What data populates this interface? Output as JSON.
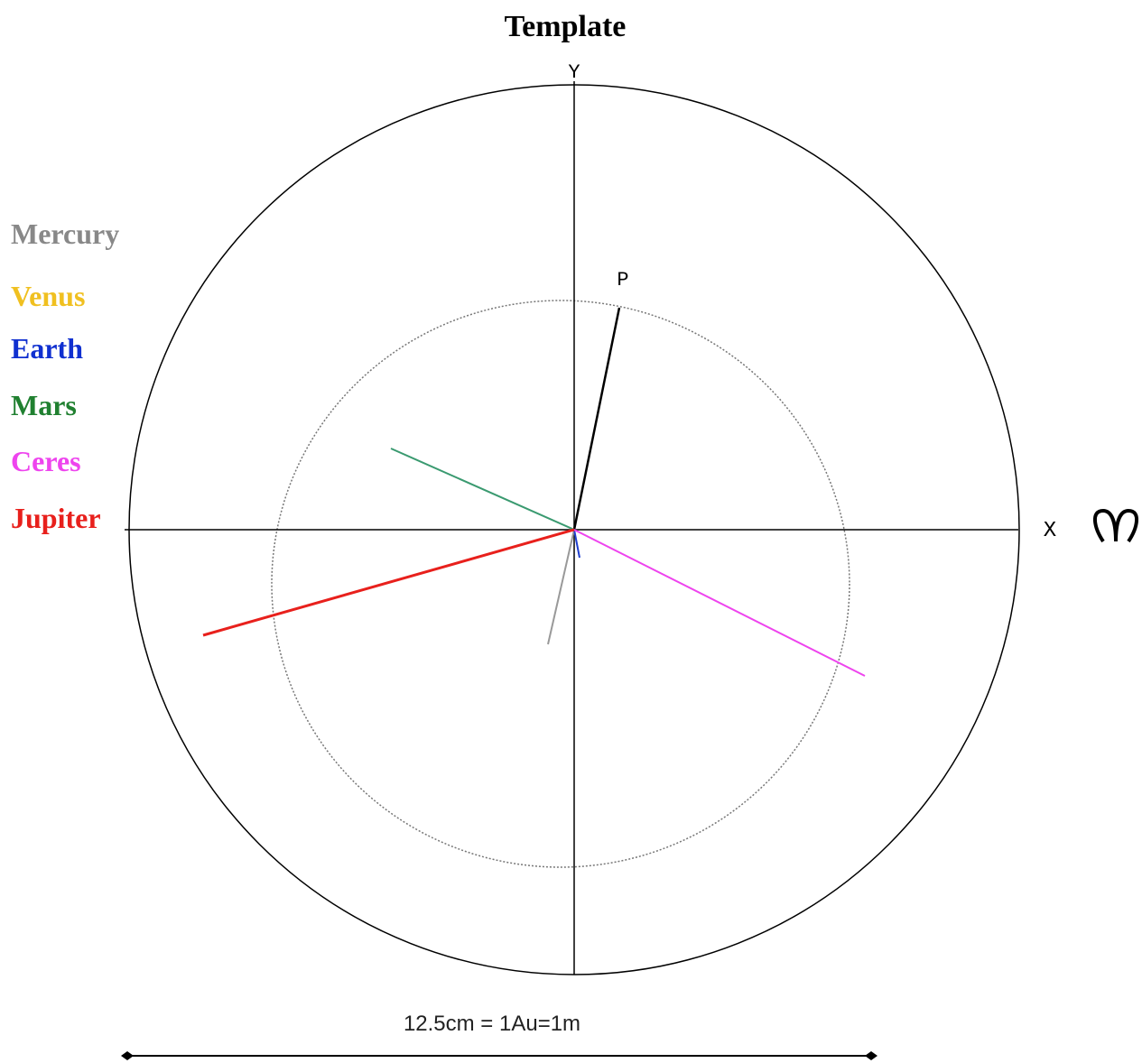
{
  "title": "Template",
  "axes": {
    "y": "Y",
    "x": "X",
    "point": "P"
  },
  "legend": [
    "Mercury",
    "Venus",
    "Earth",
    "Mars",
    "Ceres",
    "Jupiter"
  ],
  "scale": "12.5cm = 1Au=1m"
}
